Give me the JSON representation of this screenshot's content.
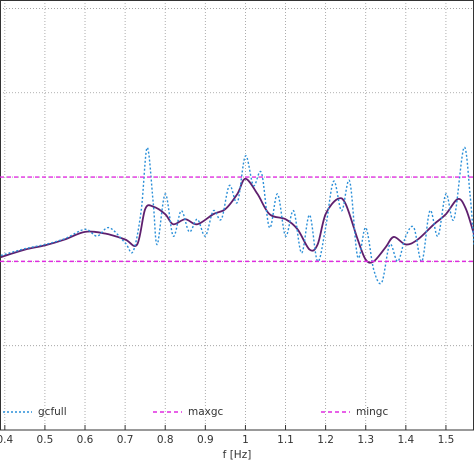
{
  "chart_data": {
    "type": "line",
    "xlabel": "f [Hz]",
    "xlim": [
      0.388,
      1.57
    ],
    "xticks": [
      0.4,
      0.5,
      0.6,
      0.7,
      0.8,
      0.9,
      1,
      1.1,
      1.2,
      1.3,
      1.4,
      1.5
    ],
    "ylim": [
      0,
      5.1
    ],
    "ygrid": [
      1,
      2,
      3,
      4,
      5
    ],
    "grid": true,
    "legend": "bottom",
    "series": [
      {
        "color": "#5e1f6e",
        "style": "solid",
        "x": [
          0.39,
          0.45,
          0.5,
          0.55,
          0.6,
          0.65,
          0.7,
          0.73,
          0.75,
          0.77,
          0.8,
          0.82,
          0.85,
          0.88,
          0.92,
          0.95,
          0.98,
          1.0,
          1.03,
          1.06,
          1.1,
          1.13,
          1.16,
          1.18,
          1.2,
          1.23,
          1.25,
          1.28,
          1.3,
          1.32,
          1.35,
          1.37,
          1.4,
          1.43,
          1.47,
          1.5,
          1.53,
          1.55,
          1.57
        ],
        "values": [
          2.05,
          2.14,
          2.19,
          2.26,
          2.35,
          2.33,
          2.26,
          2.2,
          2.62,
          2.65,
          2.56,
          2.44,
          2.5,
          2.44,
          2.56,
          2.62,
          2.8,
          2.98,
          2.8,
          2.56,
          2.5,
          2.38,
          2.14,
          2.2,
          2.56,
          2.74,
          2.68,
          2.26,
          2.02,
          2.0,
          2.17,
          2.29,
          2.2,
          2.26,
          2.44,
          2.56,
          2.74,
          2.62,
          2.32
        ]
      },
      {
        "name": "gcfull",
        "color": "#2a8fd8",
        "style": "dotted",
        "x": [
          0.39,
          0.45,
          0.5,
          0.55,
          0.6,
          0.63,
          0.66,
          0.7,
          0.72,
          0.74,
          0.755,
          0.77,
          0.78,
          0.8,
          0.82,
          0.84,
          0.86,
          0.88,
          0.9,
          0.92,
          0.94,
          0.96,
          0.98,
          1.0,
          1.02,
          1.04,
          1.06,
          1.08,
          1.1,
          1.12,
          1.14,
          1.16,
          1.18,
          1.2,
          1.22,
          1.24,
          1.26,
          1.28,
          1.3,
          1.32,
          1.34,
          1.36,
          1.38,
          1.4,
          1.42,
          1.44,
          1.46,
          1.48,
          1.5,
          1.52,
          1.545,
          1.56,
          1.57
        ],
        "values": [
          2.07,
          2.15,
          2.2,
          2.27,
          2.38,
          2.3,
          2.4,
          2.22,
          2.12,
          2.6,
          3.35,
          2.7,
          2.2,
          2.8,
          2.3,
          2.6,
          2.35,
          2.5,
          2.3,
          2.6,
          2.5,
          2.9,
          2.7,
          3.25,
          2.9,
          3.05,
          2.4,
          2.8,
          2.3,
          2.6,
          2.1,
          2.55,
          2.0,
          2.4,
          2.95,
          2.6,
          2.95,
          2.05,
          2.4,
          1.9,
          1.75,
          2.2,
          2.0,
          2.3,
          2.4,
          2.0,
          2.6,
          2.3,
          2.8,
          2.5,
          3.35,
          2.8,
          2.2
        ]
      },
      {
        "name": "maxgc",
        "color": "#e02ce0",
        "style": "dashed",
        "x": [
          0.388,
          1.57
        ],
        "values": [
          3,
          3
        ]
      },
      {
        "name": "mingc",
        "color": "#e02ce0",
        "style": "dashed",
        "x": [
          0.388,
          1.57
        ],
        "values": [
          2,
          2
        ]
      }
    ]
  }
}
